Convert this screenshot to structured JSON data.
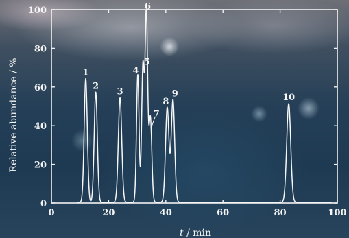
{
  "chart_data": {
    "type": "line",
    "title": "",
    "xlabel_var": "t",
    "xlabel_unit": " / min",
    "ylabel": "Relative abundance / %",
    "xlim": [
      0,
      100
    ],
    "ylim": [
      0,
      100
    ],
    "xticks": [
      0,
      20,
      40,
      60,
      80,
      100
    ],
    "yticks": [
      0,
      20,
      40,
      60,
      80,
      100
    ],
    "grid": false,
    "peaks": [
      {
        "label": "1",
        "x": 12.0,
        "y": 64,
        "width": 0.55
      },
      {
        "label": "2",
        "x": 15.5,
        "y": 57,
        "width": 0.55
      },
      {
        "label": "3",
        "x": 24.0,
        "y": 54,
        "width": 0.6
      },
      {
        "label": "4",
        "x": 30.2,
        "y": 66,
        "width": 0.45
      },
      {
        "label": "5",
        "x": 32.0,
        "y": 70,
        "width": 0.45
      },
      {
        "label": "6",
        "x": 33.2,
        "y": 98,
        "width": 0.45
      },
      {
        "label": "7",
        "x": 34.6,
        "y": 44,
        "width": 0.5
      },
      {
        "label": "8",
        "x": 40.5,
        "y": 49,
        "width": 0.6
      },
      {
        "label": "9",
        "x": 42.5,
        "y": 53,
        "width": 0.6
      },
      {
        "label": "10",
        "x": 83.0,
        "y": 51,
        "width": 0.7
      }
    ]
  }
}
